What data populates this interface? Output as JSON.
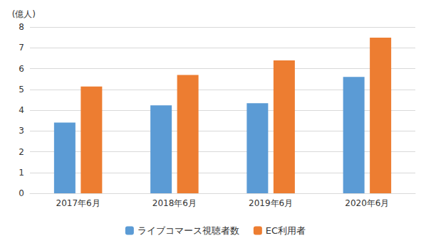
{
  "chart_data": {
    "type": "bar",
    "y_label": "(億人)",
    "categories": [
      "2017年6月",
      "2018年6月",
      "2019年6月",
      "2020年6月"
    ],
    "series": [
      {
        "name": "ライブコマース視聴者数",
        "color": "#5b9bd5",
        "values": [
          3.4,
          4.23,
          4.33,
          5.6
        ]
      },
      {
        "name": "EC利用者",
        "color": "#ed7d31",
        "values": [
          5.14,
          5.69,
          6.39,
          7.49
        ]
      }
    ],
    "ylim": [
      0,
      8
    ],
    "yticks": [
      0,
      1,
      2,
      3,
      4,
      5,
      6,
      7,
      8
    ],
    "grid": true,
    "legend": "bottom"
  }
}
